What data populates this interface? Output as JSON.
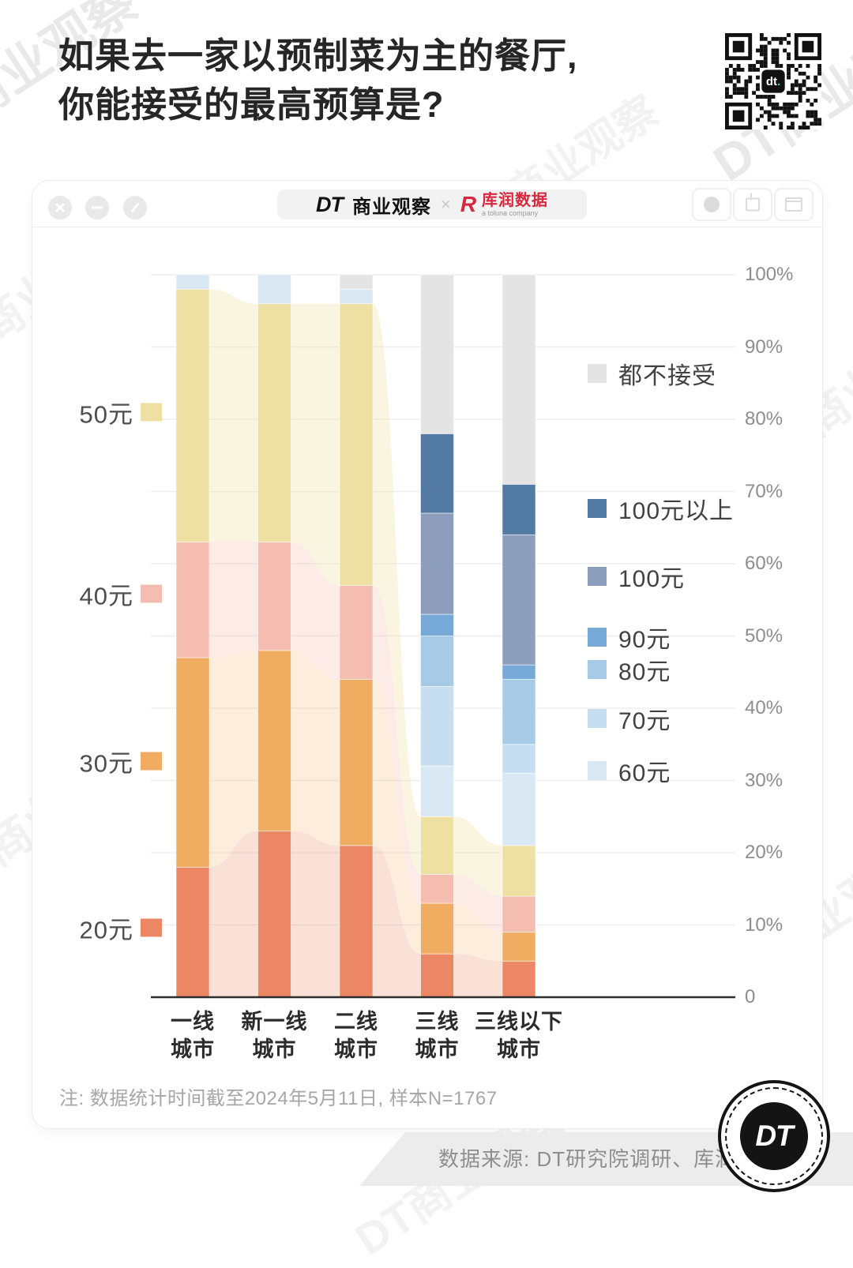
{
  "page": {
    "title_lines": [
      "如果去一家以预制菜为主的餐厅,",
      "你能接受的最高预算是?"
    ],
    "watermark_text": "DT商业观察",
    "qr_center_label": "dt."
  },
  "window_bar": {
    "brand_dt": "DT",
    "brand_name": "商业观察",
    "separator": "×",
    "partner_mark": "R",
    "partner_name": "库润数据",
    "partner_sub": "a toluna company"
  },
  "chart_data": {
    "type": "bar",
    "subtype": "stacked-percentage-columns-with-translucent-ribbons",
    "categories": [
      {
        "line1": "一线",
        "line2": "城市"
      },
      {
        "line1": "新一线",
        "line2": "城市"
      },
      {
        "line1": "二线",
        "line2": "城市"
      },
      {
        "line1": "三线",
        "line2": "城市"
      },
      {
        "line1": "三线以下",
        "line2": "城市"
      }
    ],
    "unit": "%",
    "ylim": [
      0,
      100
    ],
    "y_ticks": [
      "100%",
      "90%",
      "80%",
      "70%",
      "60%",
      "50%",
      "40%",
      "30%",
      "20%",
      "10%",
      "0"
    ],
    "series": [
      {
        "name": "20元",
        "color": "#EC8765",
        "values": [
          18,
          23,
          21,
          6,
          5
        ]
      },
      {
        "name": "30元",
        "color": "#F0AC60",
        "values": [
          29,
          25,
          23,
          7,
          4
        ]
      },
      {
        "name": "40元",
        "color": "#F5BDB0",
        "values": [
          16,
          15,
          13,
          4,
          5
        ]
      },
      {
        "name": "50元",
        "color": "#EDE0A2",
        "values": [
          35,
          33,
          39,
          8,
          7
        ]
      },
      {
        "name": "60元",
        "color": "#D9E8F2",
        "values": [
          2,
          4,
          2,
          7,
          10
        ]
      },
      {
        "name": "70元",
        "color": "#C7DEF0",
        "values": [
          0,
          0,
          0,
          11,
          4
        ]
      },
      {
        "name": "80元",
        "color": "#A7CBE7",
        "values": [
          0,
          0,
          0,
          7,
          9
        ]
      },
      {
        "name": "90元",
        "color": "#77A9D8",
        "values": [
          0,
          0,
          0,
          3,
          2
        ]
      },
      {
        "name": "100元",
        "color": "#8C9EBB",
        "values": [
          0,
          0,
          0,
          14,
          18
        ]
      },
      {
        "name": "100元以上",
        "color": "#527AA3",
        "values": [
          0,
          0,
          0,
          11,
          7
        ]
      },
      {
        "name": "都不接受",
        "color": "#E4E4E4",
        "values": [
          0,
          0,
          2,
          22,
          29
        ]
      }
    ],
    "legend_left_order": [
      "50元",
      "40元",
      "30元",
      "20元"
    ],
    "legend_right_order": [
      "都不接受",
      "100元以上",
      "100元",
      "90元",
      "80元",
      "70元",
      "60元"
    ],
    "grid": true,
    "legend_position": "left-and-right"
  },
  "footnote": "注: 数据统计时间截至2024年5月11日, 样本N=1767",
  "source": "数据来源: DT研究院调研、库润数据",
  "badge": "DT"
}
